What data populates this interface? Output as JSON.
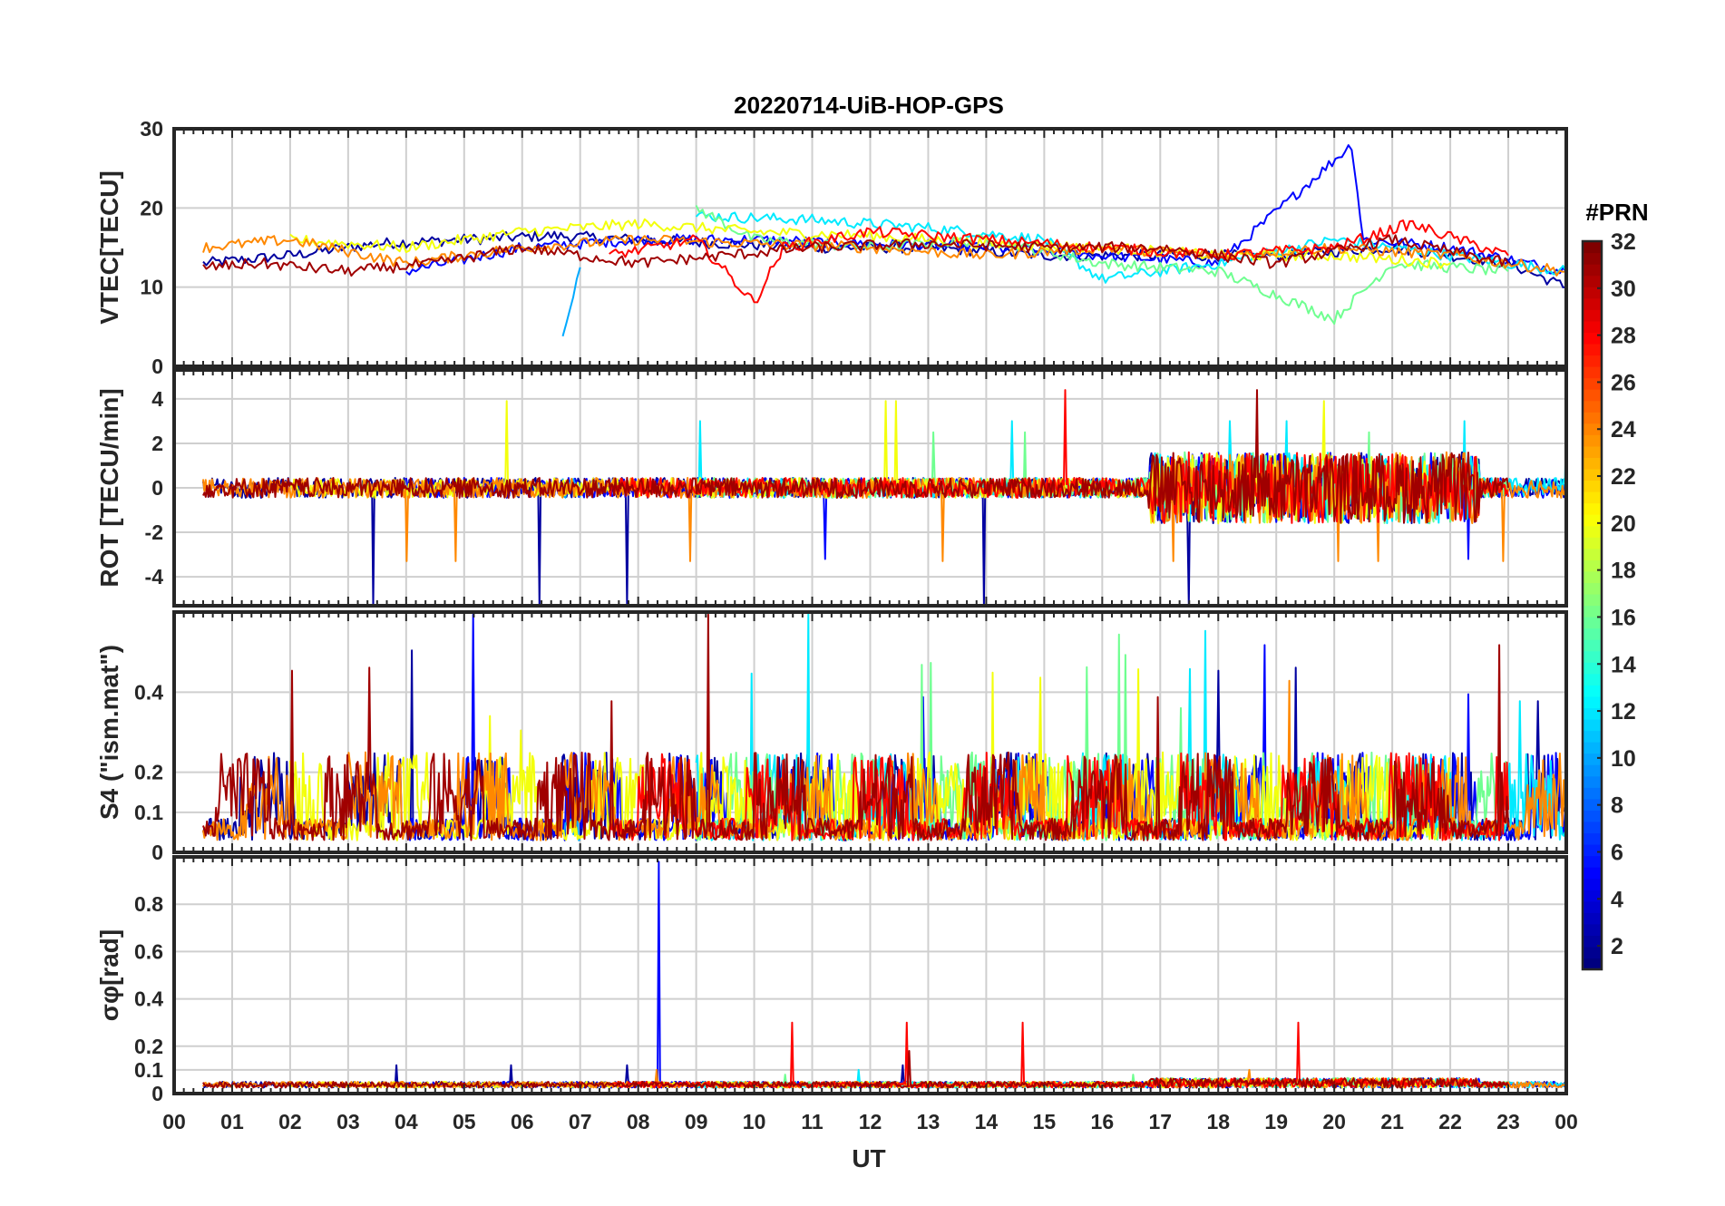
{
  "title": "20220714-UiB-HOP-GPS",
  "xlabel": "UT",
  "x_ticks": [
    "00",
    "01",
    "02",
    "03",
    "04",
    "05",
    "06",
    "07",
    "08",
    "09",
    "10",
    "11",
    "12",
    "13",
    "14",
    "15",
    "16",
    "17",
    "18",
    "19",
    "20",
    "21",
    "22",
    "23",
    "00"
  ],
  "colorbar": {
    "title": "#PRN",
    "ticks": [
      "2",
      "4",
      "6",
      "8",
      "10",
      "12",
      "14",
      "16",
      "18",
      "20",
      "22",
      "24",
      "26",
      "28",
      "30",
      "32"
    ],
    "range": [
      1,
      32
    ],
    "colormap": "jet"
  },
  "panels": [
    {
      "ylabel": "VTEC[TECU]",
      "ylim": [
        0,
        30
      ],
      "yticks": [
        0,
        10,
        20,
        30
      ],
      "ytick_labels": [
        "0",
        "10",
        "20",
        "30"
      ]
    },
    {
      "ylabel": "ROT [TECU/min]",
      "ylim": [
        -5.3,
        5.3
      ],
      "yticks": [
        -4,
        -2,
        0,
        2,
        4
      ],
      "ytick_labels": [
        "-4",
        "-2",
        "0",
        "2",
        "4"
      ]
    },
    {
      "ylabel": "S4 (\"ism.mat\")",
      "ylim": [
        0,
        0.6
      ],
      "yticks": [
        0,
        0.1,
        0.2,
        0.4
      ],
      "ytick_labels": [
        "0",
        "0.1",
        "0.2",
        "0.4"
      ]
    },
    {
      "ylabel": "σφ[rad]",
      "ylim": [
        0,
        1.0
      ],
      "yticks": [
        0,
        0.1,
        0.2,
        0.4,
        0.6,
        0.8
      ],
      "ytick_labels": [
        "0",
        "0.1",
        "0.2",
        "0.4",
        "0.6",
        "0.8"
      ]
    }
  ],
  "chart_data": {
    "type": "line",
    "title": "20220714-UiB-HOP-GPS",
    "xlabel": "UT",
    "xlim": [
      0,
      24
    ],
    "series_note": "",
    "series": [
      {
        "prn": 2,
        "vtec": [
          [
            0.5,
            13
          ],
          [
            2,
            14
          ],
          [
            3.5,
            15.5
          ],
          [
            5,
            16
          ],
          [
            6.5,
            16.5
          ],
          [
            8,
            16
          ],
          [
            9.5,
            15.5
          ],
          [
            11,
            15
          ],
          [
            13,
            15
          ],
          [
            15,
            14
          ],
          [
            17,
            14
          ],
          [
            19,
            14
          ],
          [
            21,
            15
          ],
          [
            23,
            13
          ],
          [
            24,
            10
          ]
        ],
        "rot_peak": -5.3,
        "s4_peak": 0.6,
        "sigma_peak": 0.12
      },
      {
        "prn": 5,
        "vtec": [
          [
            4,
            12
          ],
          [
            6,
            15
          ],
          [
            8,
            16
          ],
          [
            10,
            16
          ],
          [
            12,
            15.5
          ],
          [
            14,
            15
          ],
          [
            16,
            14
          ],
          [
            18,
            13
          ],
          [
            20.3,
            28
          ],
          [
            20.5,
            16
          ],
          [
            22,
            15
          ],
          [
            24,
            12
          ]
        ],
        "rot_peak": -3.2,
        "s4_peak": 0.6,
        "sigma_peak": 0.98
      },
      {
        "prn": 10,
        "vtec": [
          [
            6.7,
            4.5
          ],
          [
            7,
            12.5
          ]
        ],
        "rot_peak": 1.2,
        "s4_peak": 0.55,
        "sigma_peak": 0.08
      },
      {
        "prn": 12,
        "vtec": [
          [
            9,
            19
          ],
          [
            11,
            18.5
          ],
          [
            13,
            17.5
          ],
          [
            15,
            16
          ],
          [
            16,
            11
          ],
          [
            18,
            13
          ],
          [
            20,
            16
          ],
          [
            22,
            14
          ],
          [
            24,
            12
          ]
        ],
        "rot_peak": 3.0,
        "s4_peak": 0.6,
        "sigma_peak": 0.1
      },
      {
        "prn": 16,
        "vtec": [
          [
            9,
            20
          ],
          [
            10,
            16
          ],
          [
            12,
            15
          ],
          [
            14,
            16
          ],
          [
            16,
            13
          ],
          [
            18,
            12
          ],
          [
            20,
            6
          ],
          [
            21,
            13
          ],
          [
            23,
            12
          ]
        ],
        "rot_peak": 2.5,
        "s4_peak": 0.55,
        "sigma_peak": 0.08
      },
      {
        "prn": 20,
        "vtec": [
          [
            2,
            16
          ],
          [
            4,
            15
          ],
          [
            6,
            17
          ],
          [
            8,
            18
          ],
          [
            10,
            17
          ],
          [
            12,
            16.5
          ],
          [
            14,
            15.5
          ],
          [
            16,
            15
          ],
          [
            18,
            14
          ],
          [
            20,
            14
          ],
          [
            22,
            13
          ]
        ],
        "rot_peak": 3.9,
        "s4_peak": 0.5,
        "sigma_peak": 0.07
      },
      {
        "prn": 24,
        "vtec": [
          [
            0.5,
            15
          ],
          [
            2,
            16
          ],
          [
            4,
            13
          ],
          [
            6,
            15
          ],
          [
            8,
            16
          ],
          [
            10,
            15.5
          ],
          [
            12,
            15
          ],
          [
            14,
            14
          ],
          [
            16,
            15
          ],
          [
            18,
            14
          ],
          [
            20,
            15
          ],
          [
            22,
            14
          ],
          [
            24,
            12
          ]
        ],
        "rot_peak": -3.3,
        "s4_peak": 0.6,
        "sigma_peak": 0.1
      },
      {
        "prn": 28,
        "vtec": [
          [
            7.5,
            14
          ],
          [
            9,
            16
          ],
          [
            10,
            8
          ],
          [
            10.5,
            15
          ],
          [
            12,
            17
          ],
          [
            14,
            16
          ],
          [
            16,
            15
          ],
          [
            18,
            14
          ],
          [
            20,
            15
          ],
          [
            21.3,
            18
          ],
          [
            23,
            14
          ]
        ],
        "rot_peak": 4.4,
        "s4_peak": 0.6,
        "sigma_peak": 0.3
      },
      {
        "prn": 31,
        "vtec": [
          [
            0.5,
            12.5
          ],
          [
            1.5,
            13
          ],
          [
            3,
            12
          ],
          [
            4.5,
            13
          ],
          [
            6,
            15
          ],
          [
            8,
            13
          ],
          [
            9.5,
            14
          ],
          [
            11,
            15
          ],
          [
            13,
            15.5
          ],
          [
            15,
            15
          ],
          [
            17,
            15
          ],
          [
            19,
            13
          ],
          [
            21,
            16
          ],
          [
            23,
            13
          ]
        ],
        "rot_peak": 4.4,
        "s4_peak": 0.6,
        "sigma_peak": 0.18
      }
    ]
  }
}
